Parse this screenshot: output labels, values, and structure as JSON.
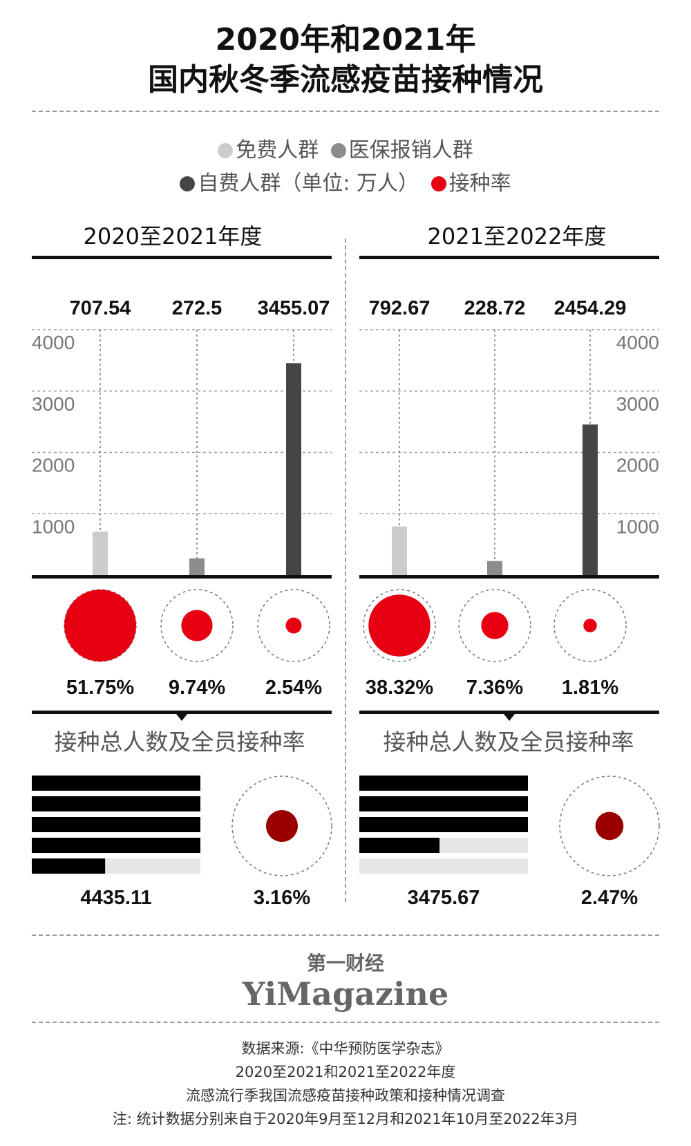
{
  "header": {
    "title_line1": "2020年和2021年",
    "title_line2": "国内秋冬季流感疫苗接种情况"
  },
  "legend": {
    "free": "免费人群",
    "insurance": "医保报销人群",
    "self_paid": "自费人群（单位: 万人）",
    "rate": "接种率"
  },
  "colors": {
    "free": "#cccccc",
    "insurance": "#8c8c8c",
    "self_paid": "#454545",
    "rate": "#e60012",
    "overall_rate": "#990000"
  },
  "chart_data": [
    {
      "type": "bar",
      "period": "2020至2021年度",
      "categories": [
        "免费人群",
        "医保报销人群",
        "自费人群"
      ],
      "values": [
        707.54,
        272.5,
        3455.07
      ],
      "value_labels": [
        "707.54",
        "272.5",
        "3455.07"
      ],
      "ylim": [
        0,
        4000
      ],
      "yticks": [
        "1000",
        "2000",
        "3000",
        "4000"
      ],
      "rates": [
        51.75,
        9.74,
        2.54
      ],
      "rate_labels": [
        "51.75%",
        "9.74%",
        "2.54%"
      ],
      "summary_title": "接种总人数及全员接种率",
      "total": 4435.11,
      "total_label": "4435.11",
      "overall_rate": 3.16,
      "overall_rate_label": "3.16%"
    },
    {
      "type": "bar",
      "period": "2021至2022年度",
      "categories": [
        "免费人群",
        "医保报销人群",
        "自费人群"
      ],
      "values": [
        792.67,
        228.72,
        2454.29
      ],
      "value_labels": [
        "792.67",
        "228.72",
        "2454.29"
      ],
      "ylim": [
        0,
        4000
      ],
      "yticks": [
        "1000",
        "2000",
        "3000",
        "4000"
      ],
      "rates": [
        38.32,
        7.36,
        1.81
      ],
      "rate_labels": [
        "38.32%",
        "7.36%",
        "1.81%"
      ],
      "summary_title": "接种总人数及全员接种率",
      "total": 3475.67,
      "total_label": "3475.67",
      "overall_rate": 2.47,
      "overall_rate_label": "2.47%"
    }
  ],
  "brand": {
    "cn": "第一财经",
    "en": "YiMagazine"
  },
  "footer": {
    "line1": "数据来源:《中华预防医学杂志》",
    "line2": "2020至2021和2021至2022年度",
    "line3": "流感流行季我国流感疫苗接种政策和接种情况调查",
    "line4": "注: 统计数据分别来自于2020年9月至12月和2021年10月至2022年3月"
  }
}
